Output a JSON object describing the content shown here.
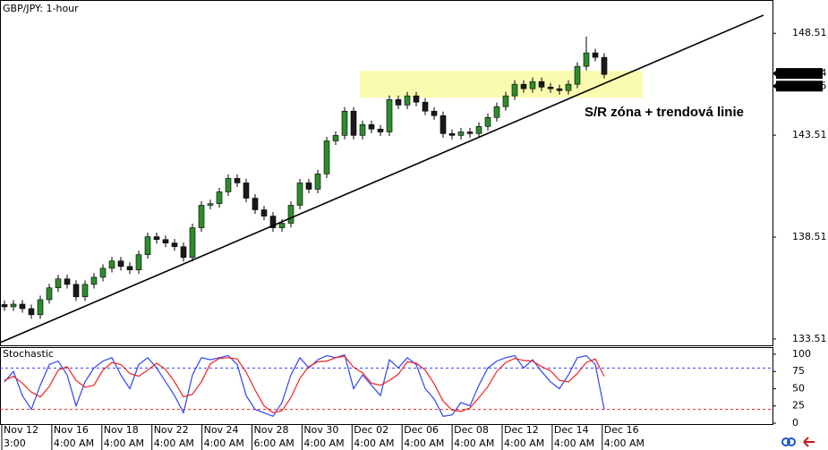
{
  "chart_data": [
    {
      "type": "candlestick",
      "title": "GBP/JPY: 1-hour",
      "annotation": "S/R zóna + trendová linie",
      "xlim": [
        -0.5,
        85.8
      ],
      "ylim": [
        133.2,
        150.1
      ],
      "yticks": [
        133.51,
        138.51,
        143.51,
        148.51
      ],
      "bull_color": "#2e8b2e",
      "bear_color": "#1a1a1a",
      "open": [
        135.2,
        135.09,
        135.22,
        135.0,
        134.7,
        135.44,
        136.02,
        136.46,
        136.19,
        135.58,
        136.19,
        136.54,
        136.98,
        137.34,
        137.07,
        136.9,
        137.65,
        138.53,
        138.39,
        138.22,
        138.04,
        137.51,
        138.97,
        140.07,
        140.15,
        140.73,
        141.39,
        141.17,
        140.42,
        139.85,
        139.54,
        138.97,
        139.19,
        140.07,
        141.17,
        140.86,
        141.61,
        143.23,
        143.5,
        144.69,
        143.5,
        144.03,
        143.81,
        143.67,
        145.26,
        144.99,
        145.44,
        145.13,
        144.69,
        144.47,
        143.59,
        143.5,
        143.67,
        143.59,
        143.94,
        144.38,
        144.91,
        145.44,
        146.01,
        145.79,
        146.14,
        145.87,
        145.79,
        145.7,
        146.01,
        146.89,
        147.55,
        147.33
      ],
      "high": [
        135.4,
        135.42,
        135.42,
        135.2,
        135.64,
        136.22,
        136.66,
        136.66,
        136.39,
        136.39,
        136.74,
        137.18,
        137.54,
        137.54,
        137.27,
        137.85,
        138.73,
        138.73,
        138.59,
        138.42,
        138.24,
        139.17,
        140.27,
        140.35,
        140.93,
        141.59,
        141.59,
        141.37,
        140.62,
        140.05,
        139.74,
        139.39,
        140.27,
        141.37,
        141.37,
        141.81,
        143.43,
        143.7,
        144.89,
        144.89,
        144.23,
        144.23,
        144.01,
        145.46,
        145.46,
        145.64,
        145.64,
        145.33,
        144.89,
        144.67,
        143.79,
        143.87,
        143.87,
        144.14,
        144.58,
        145.11,
        145.64,
        146.21,
        146.21,
        146.34,
        146.34,
        146.07,
        145.99,
        146.21,
        147.09,
        148.35,
        147.75,
        147.53
      ],
      "low": [
        134.89,
        134.89,
        134.8,
        134.5,
        134.5,
        135.24,
        135.82,
        135.99,
        135.38,
        135.38,
        135.99,
        136.34,
        136.78,
        136.87,
        136.7,
        136.7,
        137.45,
        138.19,
        138.02,
        137.84,
        137.31,
        137.31,
        138.77,
        139.87,
        139.95,
        140.53,
        140.97,
        140.22,
        139.65,
        139.34,
        138.77,
        138.77,
        138.99,
        139.87,
        140.66,
        140.66,
        141.41,
        143.03,
        143.3,
        143.3,
        143.3,
        143.61,
        143.47,
        143.47,
        144.79,
        144.79,
        144.93,
        144.49,
        144.27,
        143.39,
        143.3,
        143.3,
        143.39,
        143.39,
        143.74,
        144.18,
        144.71,
        145.24,
        145.59,
        145.59,
        145.67,
        145.59,
        145.5,
        145.5,
        145.81,
        146.69,
        147.13,
        146.29
      ],
      "close": [
        135.09,
        135.22,
        135.0,
        134.7,
        135.44,
        136.02,
        136.46,
        136.19,
        135.58,
        136.19,
        136.54,
        136.98,
        137.34,
        137.07,
        136.9,
        137.65,
        138.53,
        138.39,
        138.22,
        138.04,
        137.51,
        138.97,
        140.07,
        140.15,
        140.73,
        141.39,
        141.17,
        140.42,
        139.85,
        139.54,
        138.97,
        139.19,
        140.07,
        141.17,
        140.86,
        141.61,
        143.23,
        143.5,
        144.69,
        143.5,
        144.03,
        143.81,
        143.67,
        145.26,
        144.99,
        145.44,
        145.13,
        144.69,
        144.47,
        143.59,
        143.5,
        143.67,
        143.59,
        143.94,
        144.38,
        144.91,
        145.44,
        146.01,
        145.79,
        146.14,
        145.87,
        145.79,
        145.7,
        146.01,
        146.89,
        147.55,
        147.33,
        146.49
      ],
      "price_labels": [
        146.54,
        146.05
      ],
      "zone": {
        "x": [
          39.7,
          71.3
        ],
        "y": [
          145.35,
          146.67
        ],
        "color": "#fbfbb0"
      },
      "trendline": {
        "x": [
          -0.5,
          84.8
        ],
        "y": [
          133.33,
          149.4
        ],
        "color": "#000000"
      }
    },
    {
      "type": "line",
      "title": "Stochastic",
      "xlim": [
        -0.5,
        85.8
      ],
      "ylim": [
        -1.3,
        109
      ],
      "yticks": [
        0,
        25,
        50,
        75,
        100
      ],
      "levels": [
        {
          "value": 80,
          "color": "#3344ee"
        },
        {
          "value": 20,
          "color": "#ee2222"
        }
      ],
      "series": [
        {
          "color": "#3344ee",
          "values": [
            60,
            75,
            40,
            20,
            55,
            85,
            90,
            70,
            25,
            60,
            80,
            90,
            95,
            70,
            50,
            85,
            95,
            80,
            60,
            40,
            15,
            70,
            95,
            92,
            95,
            98,
            85,
            40,
            20,
            15,
            10,
            30,
            70,
            95,
            80,
            92,
            98,
            95,
            99,
            50,
            70,
            55,
            40,
            92,
            80,
            95,
            85,
            50,
            35,
            10,
            12,
            30,
            25,
            55,
            80,
            90,
            95,
            98,
            80,
            92,
            75,
            60,
            50,
            70,
            95,
            98,
            85,
            20
          ]
        },
        {
          "color": "#ee2222",
          "values": [
            62,
            68,
            58,
            45,
            38,
            53,
            77,
            82,
            62,
            52,
            55,
            77,
            88,
            85,
            72,
            68,
            77,
            87,
            78,
            60,
            38,
            42,
            60,
            86,
            94,
            95,
            93,
            74,
            48,
            25,
            15,
            18,
            37,
            65,
            82,
            89,
            90,
            95,
            97,
            81,
            73,
            58,
            55,
            62,
            71,
            89,
            87,
            77,
            57,
            32,
            19,
            17,
            22,
            37,
            53,
            75,
            88,
            94,
            91,
            90,
            82,
            76,
            62,
            60,
            72,
            88,
            93,
            68
          ]
        }
      ]
    },
    {
      "type": "axis",
      "x_labels": [
        {
          "date": "Nov 12",
          "time": "3:00"
        },
        {
          "date": "Nov 16",
          "time": "4:00 AM"
        },
        {
          "date": "Nov 18",
          "time": "4:00 AM"
        },
        {
          "date": "Nov 22",
          "time": "4:00 AM"
        },
        {
          "date": "Nov 24",
          "time": "4:00 AM"
        },
        {
          "date": "Nov 28",
          "time": "6:00 AM"
        },
        {
          "date": "Nov 30",
          "time": "4:00 AM"
        },
        {
          "date": "Dec 02",
          "time": "4:00 AM"
        },
        {
          "date": "Dec 06",
          "time": "4:00 AM"
        },
        {
          "date": "Dec 08",
          "time": "4:00 AM"
        },
        {
          "date": "Dec 12",
          "time": "4:00 AM"
        },
        {
          "date": "Dec 14",
          "time": "4:00 AM"
        },
        {
          "date": "Dec 16",
          "time": "4:00 AM"
        }
      ]
    }
  ]
}
